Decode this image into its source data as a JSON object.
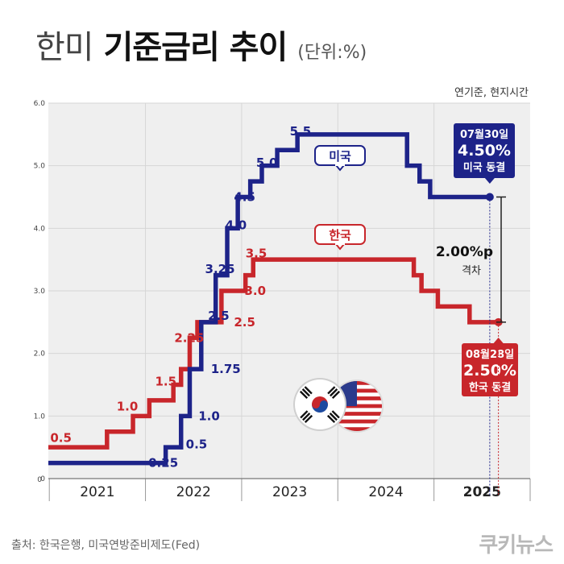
{
  "header": {
    "title_light": "한미",
    "title_bold": "기준금리 추이",
    "unit": "(단위:%)",
    "basis": "연기준, 현지시간"
  },
  "footer": {
    "source": "출처: 한국은행, 미국연방준비제도(Fed)",
    "brand": "쿠키뉴스"
  },
  "colors": {
    "us": "#1d2389",
    "kr": "#c8262b",
    "panel": "#efefef"
  },
  "chart_data": {
    "type": "line",
    "title": "한미 기준금리 추이",
    "ylim": [
      0,
      6
    ],
    "yticks": [
      "0",
      "1.0",
      "2.0",
      "3.0",
      "4.0",
      "5.0",
      "6.0"
    ],
    "years": [
      "2021",
      "2022",
      "2023",
      "2024",
      "2025"
    ],
    "xlim": [
      2020.99,
      2026.0
    ],
    "grid": true,
    "series": [
      {
        "name": "미국",
        "key": "us",
        "steps": [
          [
            2020.99,
            0.25
          ],
          [
            2022.21,
            0.5
          ],
          [
            2022.37,
            1.0
          ],
          [
            2022.46,
            1.75
          ],
          [
            2022.58,
            2.5
          ],
          [
            2022.73,
            3.25
          ],
          [
            2022.85,
            4.0
          ],
          [
            2022.96,
            4.5
          ],
          [
            2023.09,
            4.75
          ],
          [
            2023.21,
            5.0
          ],
          [
            2023.37,
            5.25
          ],
          [
            2023.58,
            5.5
          ],
          [
            2024.72,
            5.0
          ],
          [
            2024.85,
            4.75
          ],
          [
            2024.96,
            4.5
          ],
          [
            2025.58,
            4.5
          ]
        ],
        "labels": [
          {
            "text": "0.25",
            "x": 2022.03,
            "y": 0.25
          },
          {
            "text": "0.5",
            "x": 2022.42,
            "y": 0.55
          },
          {
            "text": "1.0",
            "x": 2022.55,
            "y": 1.0
          },
          {
            "text": "1.75",
            "x": 2022.68,
            "y": 1.75
          },
          {
            "text": "2.5",
            "x": 2022.65,
            "y": 2.6
          },
          {
            "text": "3.25",
            "x": 2022.62,
            "y": 3.35
          },
          {
            "text": "4.0",
            "x": 2022.83,
            "y": 4.05
          },
          {
            "text": "4.5",
            "x": 2022.92,
            "y": 4.5
          },
          {
            "text": "5.0",
            "x": 2023.15,
            "y": 5.05
          },
          {
            "text": "5.5",
            "x": 2023.5,
            "y": 5.55
          }
        ]
      },
      {
        "name": "한국",
        "key": "kr",
        "steps": [
          [
            2020.99,
            0.5
          ],
          [
            2021.6,
            0.75
          ],
          [
            2021.87,
            1.0
          ],
          [
            2022.04,
            1.25
          ],
          [
            2022.29,
            1.5
          ],
          [
            2022.37,
            1.75
          ],
          [
            2022.46,
            2.25
          ],
          [
            2022.54,
            2.5
          ],
          [
            2022.79,
            3.0
          ],
          [
            2023.04,
            3.25
          ],
          [
            2023.12,
            3.5
          ],
          [
            2024.79,
            3.25
          ],
          [
            2024.87,
            3.0
          ],
          [
            2025.04,
            2.75
          ],
          [
            2025.37,
            2.5
          ],
          [
            2025.67,
            2.5
          ]
        ],
        "labels": [
          {
            "text": "0.5",
            "x": 2021.01,
            "y": 0.65
          },
          {
            "text": "1.0",
            "x": 2021.7,
            "y": 1.15
          },
          {
            "text": "1.5",
            "x": 2022.1,
            "y": 1.55
          },
          {
            "text": "2.25",
            "x": 2022.3,
            "y": 2.25
          },
          {
            "text": "2.5",
            "x": 2022.92,
            "y": 2.5
          },
          {
            "text": "3.0",
            "x": 2023.03,
            "y": 3.0
          },
          {
            "text": "3.5",
            "x": 2023.04,
            "y": 3.6
          }
        ]
      }
    ],
    "tags": {
      "us": "미국",
      "kr": "한국"
    },
    "callouts": {
      "us": {
        "date": "07월30일",
        "value": "4.50%",
        "text": "미국 동결",
        "x": 2025.58,
        "y": 4.5
      },
      "kr": {
        "date": "08월28일",
        "value": "2.50%",
        "text": "한국 동결",
        "x": 2025.67,
        "y": 2.5
      }
    },
    "gap": {
      "value": "2.00%p",
      "label": "격차"
    }
  }
}
